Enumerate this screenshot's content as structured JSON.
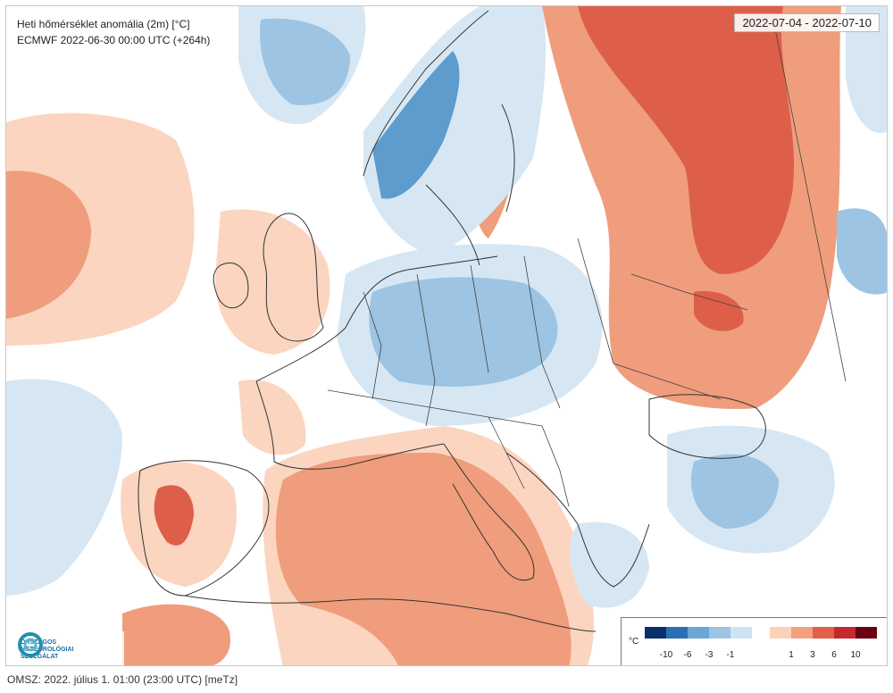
{
  "map": {
    "title_line1": "Heti hőmérséklet anomália (2m) [°C]",
    "title_line2": "ECMWF 2022-06-30 00:00 UTC (+264h)",
    "date_range": "2022-07-04 - 2022-07-10",
    "region": "Europe",
    "colors": {
      "background": "#ffffff",
      "cool_light": "#d6e7f3",
      "cool_mid": "#9dc4e2",
      "cool_dark": "#5d9ccd",
      "warm_light": "#fbd5c0",
      "warm_mid": "#ef9d7c",
      "warm_dark": "#dd5f4a",
      "boundary": "#333333"
    }
  },
  "logo": {
    "line1": "ORSZÁGOS",
    "line2": "METEOROLÓGIAI",
    "line3": "SZOLGÁLAT"
  },
  "legend": {
    "unit": "°C",
    "cool_swatches": [
      "#08306b",
      "#2a6fb3",
      "#6aa6d6",
      "#9dc4e2",
      "#cfe2f2"
    ],
    "warm_swatches": [
      "#fcd1b9",
      "#f2a07e",
      "#e0604a",
      "#c42a2d",
      "#6b0012"
    ],
    "cool_labels": [
      "-10",
      "-6",
      "-3",
      "-1"
    ],
    "warm_labels": [
      "1",
      "3",
      "6",
      "10"
    ]
  },
  "footer": {
    "text": "OMSZ: 2022. július 1. 01:00 (23:00  UTC)  [meTz]"
  }
}
